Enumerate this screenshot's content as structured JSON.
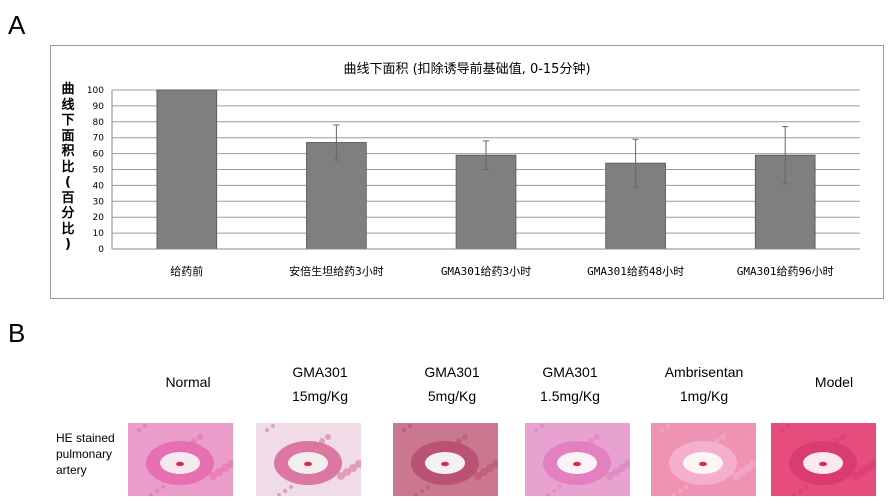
{
  "panel_a_label": "A",
  "panel_b_label": "B",
  "chart_data": {
    "type": "bar",
    "title": "曲线下面积 (扣除诱导前基础值, 0-15分钟)",
    "ylabel": "曲线下面积比(百分比)",
    "ylabel_chars": [
      "曲",
      "线",
      "下",
      "面",
      "积",
      "比",
      "(",
      "百",
      "分",
      "比",
      ")"
    ],
    "ylim": [
      0,
      100
    ],
    "yticks": [
      0,
      10,
      20,
      30,
      40,
      50,
      60,
      70,
      80,
      90,
      100
    ],
    "categories": [
      "给药前",
      "安倍生坦给药3小时",
      "GMA301给药3小时",
      "GMA301给药48小时",
      "GMA301给药96小时"
    ],
    "values": [
      100,
      67,
      59,
      54,
      59
    ],
    "error": [
      0,
      11,
      9,
      15,
      18
    ],
    "grid": true,
    "legend": "none",
    "colors": {
      "bar": "#7f7f7f",
      "bar_edge": "#555555",
      "grid": "#9c9c9c",
      "axis": "#888888"
    }
  },
  "panel_b": {
    "row_label": [
      "HE stained",
      "pulmonary",
      "artery"
    ],
    "samples": [
      {
        "lines": [
          "Normal"
        ],
        "tissue": "#ea9dc9",
        "wall": "#e86aae",
        "lumen": "#f6eaf2"
      },
      {
        "lines": [
          "GMA301",
          "15mg/Kg"
        ],
        "tissue": "#efdce6",
        "wall": "#d96b9b",
        "lumen": "#f3eeee"
      },
      {
        "lines": [
          "GMA301",
          "5mg/Kg"
        ],
        "tissue": "#c9788f",
        "wall": "#b84e70",
        "lumen": "#f7f0f2"
      },
      {
        "lines": [
          "GMA301",
          "1.5mg/Kg"
        ],
        "tissue": "#e7a2cf",
        "wall": "#e27cbc",
        "lumen": "#faf3f8"
      },
      {
        "lines": [
          "Ambrisentan",
          "1mg/Kg"
        ],
        "tissue": "#ef93b4",
        "wall": "#f3b3cd",
        "lumen": "#fdf4f8"
      },
      {
        "lines": [
          "Model"
        ],
        "tissue": "#e54d7d",
        "wall": "#d83b70",
        "lumen": "#fbe9ef"
      }
    ]
  }
}
